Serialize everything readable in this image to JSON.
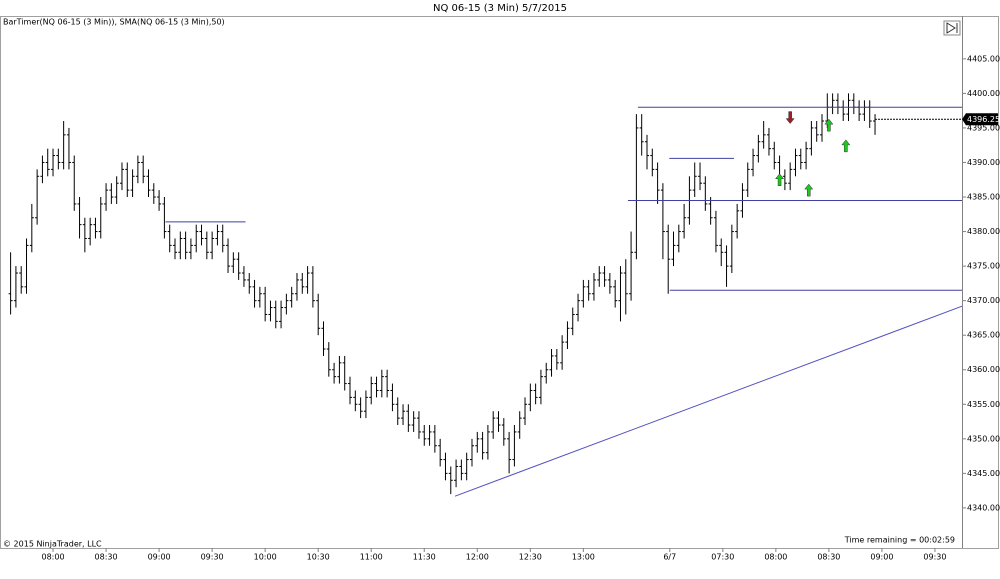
{
  "chart_data": {
    "type": "ohlc",
    "title": "NQ 06-15 (3 Min)  5/7/2015",
    "subtitle": "BarTimer(NQ 06-15 (3 Min)), SMA(NQ 06-15 (3 Min),50)",
    "footnote": "© 2015 NinjaTrader, LLC",
    "annotation": "Time remaining = 00:02:59",
    "color": "#000000",
    "open": [
      4371,
      4370,
      4374,
      4372,
      4378,
      4382,
      4388,
      4390,
      4389,
      4391,
      4390,
      4394,
      4390,
      4384,
      4381,
      4379,
      4381,
      4380,
      4384,
      4386,
      4385,
      4387,
      4389,
      4386,
      4388,
      4390,
      4388,
      4386,
      4385,
      4384,
      4380,
      4378,
      4377,
      4379,
      4377,
      4378,
      4380,
      4379,
      4377,
      4379,
      4380,
      4378,
      4375,
      4376,
      4374,
      4373,
      4372,
      4370,
      4371,
      4368,
      4369,
      4367,
      4369,
      4370,
      4371,
      4373,
      4372,
      4374,
      4370,
      4366,
      4363,
      4360,
      4359,
      4361,
      4358,
      4356,
      4355,
      4354,
      4356,
      4358,
      4357,
      4359,
      4357,
      4355,
      4353,
      4354,
      4352,
      4353,
      4351,
      4350,
      4351,
      4349,
      4347,
      4345,
      4344,
      4346,
      4345,
      4347,
      4349,
      4350,
      4348,
      4351,
      4353,
      4352,
      4350,
      4347,
      4351,
      4353,
      4355,
      4357,
      4356,
      4359,
      4360,
      4362,
      4361,
      4364,
      4366,
      4368,
      4370,
      4372,
      4371,
      4373,
      4374,
      4373,
      4372,
      4370,
      4374,
      4371,
      4377,
      4395,
      4393,
      4391,
      4389,
      4386,
      4380,
      4376,
      4378,
      4380,
      4382,
      4386,
      4388,
      4387,
      4384,
      4382,
      4378,
      4377,
      4375,
      4380,
      4383,
      4386,
      4389,
      4391,
      4393,
      4394,
      4392,
      4390,
      4388,
      4387,
      4389,
      4391,
      4390,
      4392,
      4395,
      4394,
      4396,
      4398,
      4399,
      4398,
      4397,
      4399,
      4398,
      4397,
      4398,
      4396
    ],
    "high": [
      4377,
      4375,
      4375,
      4379,
      4384,
      4389,
      4391,
      4392,
      4392,
      4392,
      4396,
      4395,
      4391,
      4385,
      4382,
      4382,
      4382,
      4385,
      4387,
      4387,
      4388,
      4390,
      4390,
      4389,
      4391,
      4391,
      4389,
      4387,
      4386,
      4385,
      4381,
      4379,
      4380,
      4380,
      4379,
      4381,
      4381,
      4380,
      4380,
      4381,
      4381,
      4379,
      4377,
      4377,
      4375,
      4374,
      4373,
      4372,
      4372,
      4370,
      4370,
      4370,
      4371,
      4372,
      4374,
      4374,
      4375,
      4375,
      4371,
      4367,
      4364,
      4361,
      4362,
      4362,
      4359,
      4357,
      4356,
      4357,
      4359,
      4359,
      4360,
      4360,
      4358,
      4356,
      4355,
      4355,
      4354,
      4354,
      4352,
      4352,
      4352,
      4350,
      4348,
      4346,
      4347,
      4347,
      4348,
      4350,
      4351,
      4351,
      4352,
      4354,
      4354,
      4353,
      4351,
      4352,
      4354,
      4356,
      4358,
      4358,
      4360,
      4361,
      4363,
      4363,
      4365,
      4367,
      4369,
      4371,
      4373,
      4373,
      4374,
      4375,
      4375,
      4374,
      4373,
      4375,
      4376,
      4380,
      4397,
      4397,
      4394,
      4392,
      4390,
      4387,
      4381,
      4380,
      4381,
      4384,
      4388,
      4390,
      4390,
      4388,
      4385,
      4383,
      4379,
      4378,
      4381,
      4384,
      4387,
      4390,
      4392,
      4394,
      4396,
      4395,
      4393,
      4391,
      4389,
      4390,
      4392,
      4392,
      4393,
      4396,
      4396,
      4397,
      4400,
      4400,
      4400,
      4399,
      4400,
      4400,
      4399,
      4399,
      4399,
      4397
    ],
    "low": [
      4368,
      4369,
      4371,
      4371,
      4377,
      4381,
      4387,
      4388,
      4388,
      4389,
      4389,
      4389,
      4383,
      4379,
      4377,
      4378,
      4379,
      4379,
      4383,
      4384,
      4384,
      4386,
      4385,
      4385,
      4387,
      4387,
      4385,
      4384,
      4383,
      4379,
      4377,
      4376,
      4376,
      4376,
      4376,
      4377,
      4378,
      4376,
      4376,
      4378,
      4377,
      4374,
      4374,
      4373,
      4372,
      4371,
      4369,
      4369,
      4367,
      4367,
      4366,
      4366,
      4368,
      4369,
      4370,
      4371,
      4371,
      4369,
      4365,
      4362,
      4359,
      4358,
      4358,
      4357,
      4355,
      4354,
      4353,
      4353,
      4355,
      4356,
      4356,
      4356,
      4354,
      4352,
      4352,
      4351,
      4351,
      4350,
      4349,
      4349,
      4348,
      4346,
      4344,
      4342,
      4343,
      4344,
      4344,
      4346,
      4348,
      4347,
      4347,
      4350,
      4351,
      4349,
      4345,
      4346,
      4350,
      4352,
      4354,
      4355,
      4355,
      4358,
      4359,
      4360,
      4360,
      4363,
      4365,
      4367,
      4369,
      4370,
      4370,
      4372,
      4372,
      4371,
      4369,
      4367,
      4368,
      4370,
      4376,
      4391,
      4389,
      4388,
      4384,
      4376,
      4371,
      4375,
      4377,
      4379,
      4381,
      4385,
      4386,
      4383,
      4381,
      4377,
      4375,
      4372,
      4374,
      4379,
      4382,
      4385,
      4388,
      4390,
      4392,
      4391,
      4389,
      4387,
      4386,
      4386,
      4388,
      4389,
      4389,
      4391,
      4393,
      4393,
      4395,
      4397,
      4397,
      4396,
      4396,
      4397,
      4396,
      4396,
      4395,
      4394
    ],
    "close": [
      4370,
      4374,
      4372,
      4378,
      4382,
      4388,
      4390,
      4389,
      4391,
      4390,
      4394,
      4390,
      4384,
      4381,
      4379,
      4381,
      4380,
      4384,
      4386,
      4385,
      4387,
      4389,
      4386,
      4388,
      4390,
      4388,
      4386,
      4385,
      4384,
      4380,
      4378,
      4377,
      4379,
      4377,
      4378,
      4380,
      4379,
      4377,
      4379,
      4380,
      4378,
      4375,
      4376,
      4374,
      4373,
      4372,
      4370,
      4371,
      4368,
      4369,
      4367,
      4369,
      4370,
      4371,
      4373,
      4372,
      4374,
      4370,
      4366,
      4363,
      4360,
      4359,
      4361,
      4358,
      4356,
      4355,
      4354,
      4356,
      4358,
      4357,
      4359,
      4357,
      4355,
      4353,
      4354,
      4352,
      4353,
      4351,
      4350,
      4351,
      4349,
      4347,
      4345,
      4344,
      4346,
      4345,
      4347,
      4349,
      4350,
      4348,
      4351,
      4353,
      4352,
      4350,
      4347,
      4351,
      4353,
      4355,
      4357,
      4356,
      4359,
      4360,
      4362,
      4361,
      4364,
      4366,
      4368,
      4370,
      4372,
      4371,
      4373,
      4374,
      4373,
      4372,
      4370,
      4374,
      4371,
      4377,
      4395,
      4393,
      4391,
      4389,
      4386,
      4380,
      4376,
      4378,
      4380,
      4382,
      4386,
      4388,
      4387,
      4384,
      4382,
      4378,
      4377,
      4375,
      4380,
      4383,
      4386,
      4389,
      4391,
      4393,
      4394,
      4392,
      4390,
      4388,
      4387,
      4389,
      4391,
      4390,
      4392,
      4395,
      4394,
      4396,
      4398,
      4399,
      4398,
      4397,
      4399,
      4398,
      4397,
      4398,
      4396,
      4396.25
    ],
    "xlim": [
      -2,
      179.4
    ],
    "xticks": [
      {
        "value": 8,
        "label": "08:00"
      },
      {
        "value": 18,
        "label": "08:30"
      },
      {
        "value": 28,
        "label": "09:00"
      },
      {
        "value": 38,
        "label": "09:30"
      },
      {
        "value": 48,
        "label": "10:00"
      },
      {
        "value": 58,
        "label": "10:30"
      },
      {
        "value": 68,
        "label": "11:00"
      },
      {
        "value": 78,
        "label": "11:30"
      },
      {
        "value": 88,
        "label": "12:00"
      },
      {
        "value": 98,
        "label": "12:30"
      },
      {
        "value": 108,
        "label": "13:00"
      },
      {
        "value": 124.3,
        "label": "6/7"
      },
      {
        "value": 134.3,
        "label": "07:30"
      },
      {
        "value": 144.3,
        "label": "08:00"
      },
      {
        "value": 154.3,
        "label": "08:30"
      },
      {
        "value": 164.3,
        "label": "09:00"
      },
      {
        "value": 174.3,
        "label": "09:30"
      }
    ],
    "ylim": [
      4334.2,
      4411.2
    ],
    "yticks": [
      {
        "value": 4340,
        "label": "4340.00"
      },
      {
        "value": 4345,
        "label": "4345.00"
      },
      {
        "value": 4350,
        "label": "4350.00"
      },
      {
        "value": 4355,
        "label": "4355.00"
      },
      {
        "value": 4360,
        "label": "4360.00"
      },
      {
        "value": 4365,
        "label": "4365.00"
      },
      {
        "value": 4370,
        "label": "4370.00"
      },
      {
        "value": 4375,
        "label": "4375.00"
      },
      {
        "value": 4380,
        "label": "4380.00"
      },
      {
        "value": 4385,
        "label": "4385.00"
      },
      {
        "value": 4390,
        "label": "4390.00"
      },
      {
        "value": 4395,
        "label": "4395.00"
      },
      {
        "value": 4400,
        "label": "4400.00"
      },
      {
        "value": 4405,
        "label": "4405.00"
      }
    ],
    "drawings": [
      {
        "x0": 118.3,
        "x1": 179.4,
        "y0": 4398,
        "y1": 4398,
        "color": "#4040a0"
      },
      {
        "x0": 116.4,
        "x1": 179.4,
        "y0": 4384.5,
        "y1": 4384.5,
        "color": "#4040a0"
      },
      {
        "x0": 124.3,
        "x1": 179.4,
        "y0": 4371.5,
        "y1": 4371.5,
        "color": "#4040a0"
      },
      {
        "x0": 29.2,
        "x1": 44.3,
        "y0": 4381.4,
        "y1": 4381.4,
        "color": "#4040a0"
      },
      {
        "x0": 124.2,
        "x1": 136.4,
        "y0": 4390.6,
        "y1": 4390.6,
        "color": "#4040a0"
      },
      {
        "x0": 83.8,
        "x1": 179.4,
        "y0": 4341.7,
        "y1": 4369.2,
        "color": "#5050c0"
      }
    ],
    "markers": [
      {
        "x": 147,
        "y": 4396.5,
        "direction": "down",
        "color": "#a01c24"
      },
      {
        "x": 145,
        "y": 4387.5,
        "direction": "up",
        "color": "#1ec81e"
      },
      {
        "x": 150.5,
        "y": 4386,
        "direction": "up",
        "color": "#1ec81e"
      },
      {
        "x": 154.3,
        "y": 4395.4,
        "direction": "up",
        "color": "#1ec81e"
      },
      {
        "x": 157.5,
        "y": 4392.4,
        "direction": "up",
        "color": "#1ec81e"
      }
    ]
  }
}
